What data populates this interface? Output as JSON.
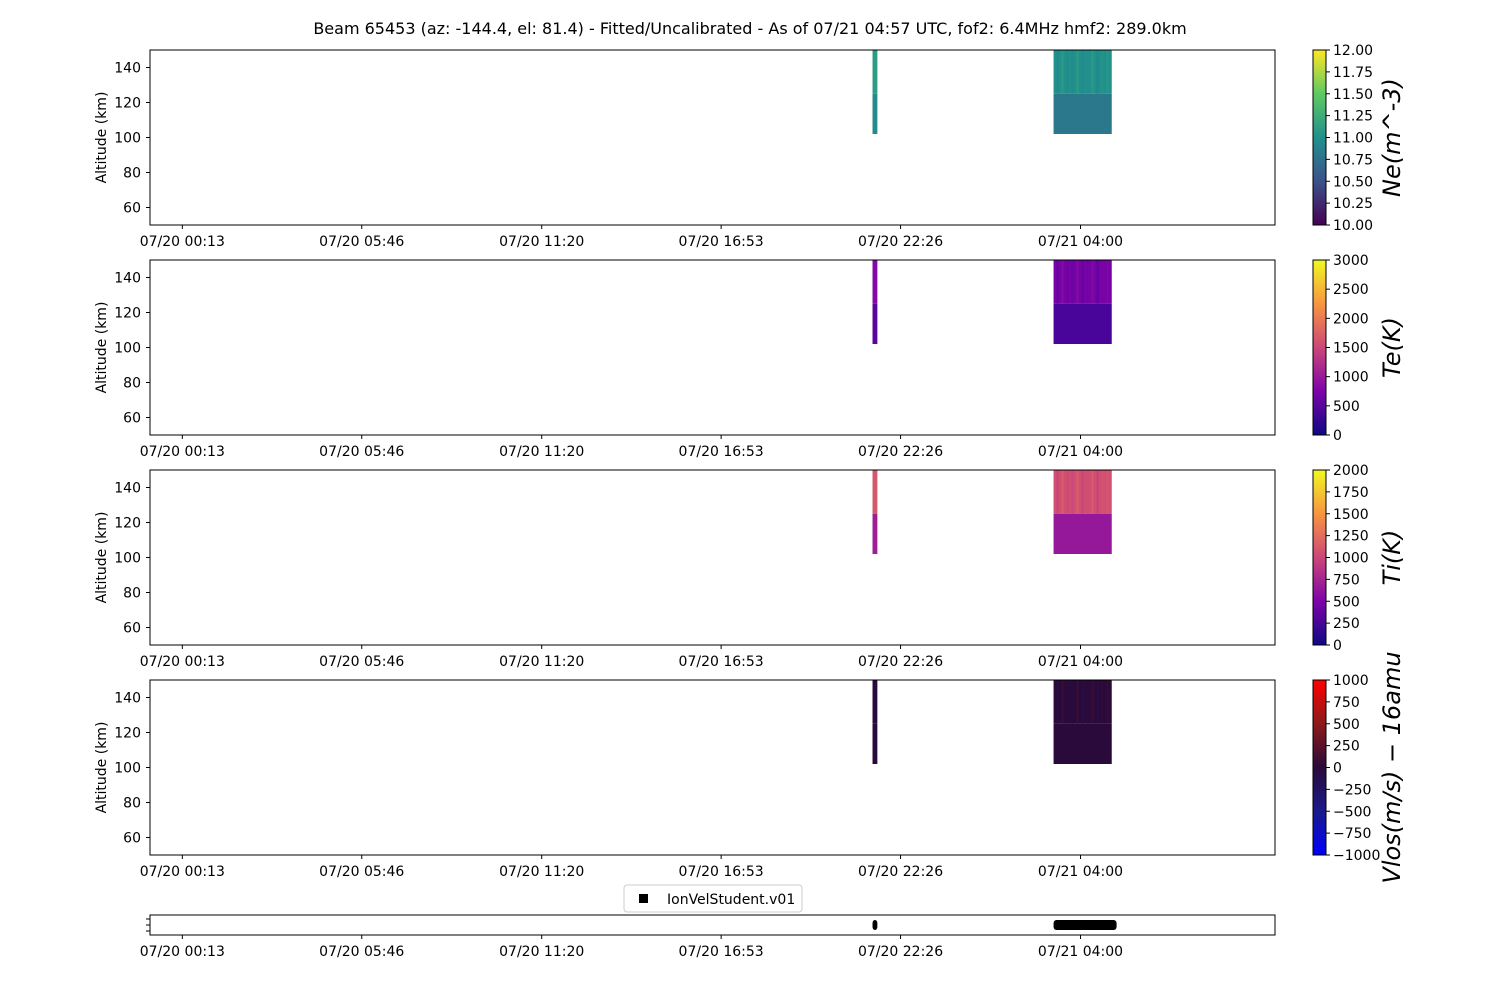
{
  "title": "Beam 65453 (az: -144.4, el: 81.4) - Fitted/Uncalibrated - As of 07/21 04:57 UTC, fof2: 6.4MHz  hmf2: 289.0km",
  "chart_data": [
    {
      "type": "heatmap",
      "ylabel": "Altitude (km)",
      "ylim": [
        50,
        150
      ],
      "yticks": [
        "60",
        "80",
        "100",
        "120",
        "140"
      ],
      "xticks": [
        "07/20 00:13",
        "07/20 05:46",
        "07/20 11:20",
        "07/20 16:53",
        "07/20 22:26",
        "07/21 04:00"
      ],
      "colorbar": {
        "label": "Ne(m^-3)",
        "range": [
          10.0,
          12.0
        ],
        "ticks": [
          "10.00",
          "10.25",
          "10.50",
          "10.75",
          "11.00",
          "11.25",
          "11.50",
          "11.75",
          "12.00"
        ],
        "colormap": "viridis"
      },
      "blocks": [
        {
          "t_start_hours": 21.35,
          "t_end_hours": 21.5,
          "alt_min": 102,
          "alt_max": 150,
          "value_lower": 10.95,
          "value_upper": 11.1
        },
        {
          "t_start_hours": 26.95,
          "t_end_hours": 28.75,
          "alt_min": 102,
          "alt_max": 150,
          "value_lower": 10.8,
          "value_upper": 11.0
        }
      ]
    },
    {
      "type": "heatmap",
      "ylabel": "Altitude (km)",
      "ylim": [
        50,
        150
      ],
      "yticks": [
        "60",
        "80",
        "100",
        "120",
        "140"
      ],
      "xticks": [
        "07/20 00:13",
        "07/20 05:46",
        "07/20 11:20",
        "07/20 16:53",
        "07/20 22:26",
        "07/21 04:00"
      ],
      "colorbar": {
        "label": "Te(K)",
        "range": [
          0,
          3000
        ],
        "ticks": [
          "0",
          "500",
          "1000",
          "1500",
          "2000",
          "2500",
          "3000"
        ],
        "colormap": "plasma"
      },
      "blocks": [
        {
          "t_start_hours": 21.35,
          "t_end_hours": 21.5,
          "alt_min": 102,
          "alt_max": 150,
          "value_lower": 500,
          "value_upper": 800
        },
        {
          "t_start_hours": 26.95,
          "t_end_hours": 28.75,
          "alt_min": 102,
          "alt_max": 150,
          "value_lower": 400,
          "value_upper": 700
        }
      ]
    },
    {
      "type": "heatmap",
      "ylabel": "Altitude (km)",
      "ylim": [
        50,
        150
      ],
      "yticks": [
        "60",
        "80",
        "100",
        "120",
        "140"
      ],
      "xticks": [
        "07/20 00:13",
        "07/20 05:46",
        "07/20 11:20",
        "07/20 16:53",
        "07/20 22:26",
        "07/21 04:00"
      ],
      "colorbar": {
        "label": "Ti(K)",
        "range": [
          0,
          2000
        ],
        "ticks": [
          "0",
          "250",
          "500",
          "750",
          "1000",
          "1250",
          "1500",
          "1750",
          "2000"
        ],
        "colormap": "plasma"
      },
      "blocks": [
        {
          "t_start_hours": 21.35,
          "t_end_hours": 21.5,
          "alt_min": 102,
          "alt_max": 150,
          "value_lower": 700,
          "value_upper": 1100
        },
        {
          "t_start_hours": 26.95,
          "t_end_hours": 28.75,
          "alt_min": 102,
          "alt_max": 150,
          "value_lower": 650,
          "value_upper": 1050
        }
      ]
    },
    {
      "type": "heatmap",
      "ylabel": "Altitude (km)",
      "ylim": [
        50,
        150
      ],
      "yticks": [
        "60",
        "80",
        "100",
        "120",
        "140"
      ],
      "xticks": [
        "07/20 00:13",
        "07/20 05:46",
        "07/20 11:20",
        "07/20 16:53",
        "07/20 22:26",
        "07/21 04:00"
      ],
      "colorbar": {
        "label": "Vlos(m/s) − 16amu",
        "range": [
          -1000,
          1000
        ],
        "ticks": [
          "−1000",
          "−750",
          "−500",
          "−250",
          "0",
          "250",
          "500",
          "750",
          "1000"
        ],
        "colormap": "bwr-dark"
      },
      "blocks": [
        {
          "t_start_hours": 21.35,
          "t_end_hours": 21.5,
          "alt_min": 102,
          "alt_max": 150,
          "value_lower": 0,
          "value_upper": 0
        },
        {
          "t_start_hours": 26.95,
          "t_end_hours": 28.75,
          "alt_min": 102,
          "alt_max": 150,
          "value_lower": 0,
          "value_upper": 0
        }
      ]
    },
    {
      "type": "scatter",
      "legend": [
        "IonVelStudent.v01"
      ],
      "legend_position": "top-center",
      "xticks": [
        "07/20 00:13",
        "07/20 05:46",
        "07/20 11:20",
        "07/20 16:53",
        "07/20 22:26",
        "07/21 04:00"
      ],
      "segments": [
        {
          "t_start_hours": 21.35,
          "t_end_hours": 21.5
        },
        {
          "t_start_hours": 26.95,
          "t_end_hours": 28.9
        }
      ]
    }
  ]
}
